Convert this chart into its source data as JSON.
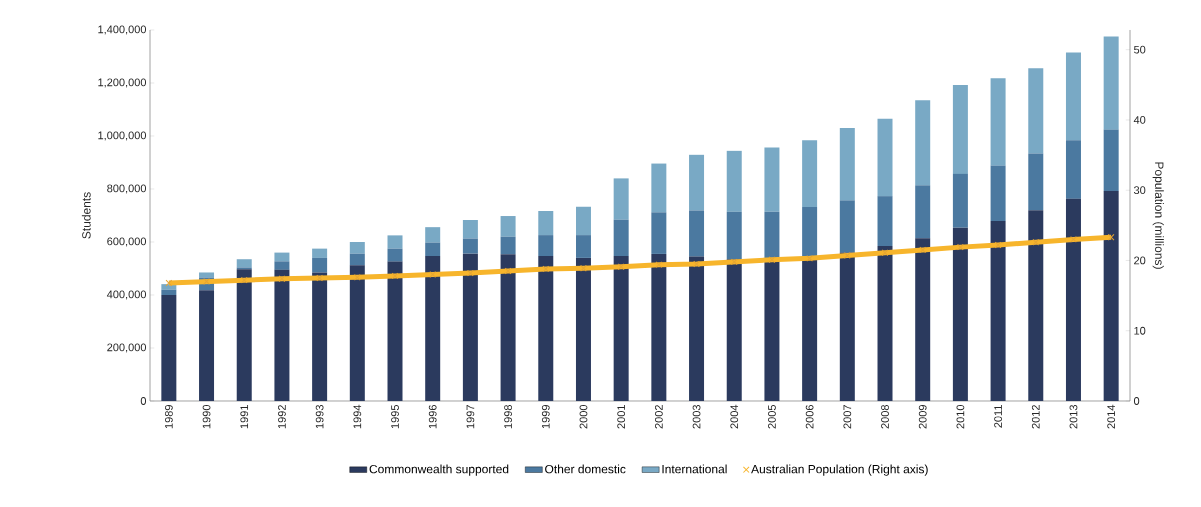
{
  "chart_data": {
    "type": "bar",
    "stacked": true,
    "ylabel": "Students",
    "y2label": "Population (millions)",
    "categories": [
      "1989",
      "1990",
      "1991",
      "1992",
      "1993",
      "1994",
      "1995",
      "1996",
      "1997",
      "1998",
      "1999",
      "2000",
      "2001",
      "2002",
      "2003",
      "2004",
      "2005",
      "2006",
      "2007",
      "2008",
      "2009",
      "2010",
      "2011",
      "2012",
      "2013",
      "2014"
    ],
    "series": [
      {
        "name": "Commonwealth supported",
        "color": "#2b3a5e",
        "values": [
          400000,
          418000,
          497000,
          495000,
          485000,
          512000,
          526000,
          547000,
          556000,
          554000,
          547000,
          540000,
          547000,
          555000,
          545000,
          535000,
          535000,
          540000,
          560000,
          585000,
          614000,
          654000,
          679000,
          720000,
          763000,
          792000
        ]
      },
      {
        "name": "Other domestic",
        "color": "#4b79a0",
        "values": [
          20000,
          48000,
          7000,
          32000,
          55000,
          44000,
          49000,
          51000,
          57000,
          66000,
          79000,
          86000,
          137000,
          157000,
          174000,
          179000,
          179000,
          192000,
          197000,
          188000,
          200000,
          203000,
          209000,
          214000,
          221000,
          232000
        ]
      },
      {
        "name": "International",
        "color": "#79a9c5",
        "values": [
          21000,
          19000,
          31000,
          33000,
          35000,
          44000,
          50000,
          58000,
          70000,
          78000,
          91000,
          107000,
          156000,
          184000,
          210000,
          230000,
          243000,
          252000,
          273000,
          292000,
          321000,
          335000,
          330000,
          322000,
          331000,
          351000
        ]
      },
      {
        "name": "Australian Population (Right axis)",
        "type": "line",
        "axis": "y2",
        "color": "#f7b52c",
        "values": [
          16.8,
          17.0,
          17.2,
          17.4,
          17.5,
          17.6,
          17.8,
          18.0,
          18.2,
          18.5,
          18.8,
          18.9,
          19.1,
          19.4,
          19.5,
          19.8,
          20.1,
          20.3,
          20.7,
          21.1,
          21.5,
          21.9,
          22.2,
          22.6,
          23.0,
          23.3
        ]
      }
    ],
    "marker": "cross",
    "line_style": "solid",
    "legend": "bottom",
    "ylim": [
      0,
      1400000
    ],
    "yticks": [
      0,
      {
        "value": 200000,
        "label": "200,000"
      },
      {
        "value": 400000,
        "label": "400,000"
      },
      {
        "value": 600000,
        "label": "600,000"
      },
      {
        "value": 800000,
        "label": "800,000"
      },
      {
        "value": 1000000,
        "label": "1,000,000"
      },
      {
        "value": 1200000,
        "label": "1,200,000"
      },
      {
        "value": 1400000,
        "label": "1,400,000"
      }
    ],
    "y2lim": [
      0,
      52.8
    ],
    "y2ticks": [
      0,
      10,
      20,
      30,
      40,
      50
    ]
  }
}
